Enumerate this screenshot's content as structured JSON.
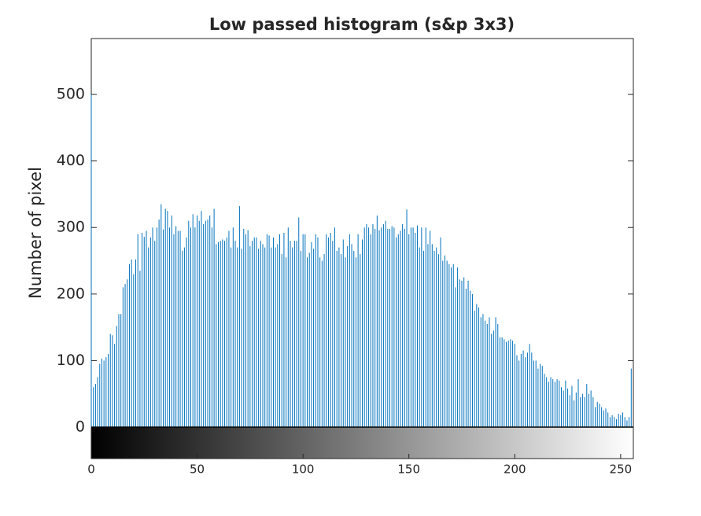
{
  "chart_data": {
    "type": "stem",
    "title": "Low passed histogram (s&p 3x3)",
    "y_label": "Number of pixel",
    "color": "#0072bd",
    "x": [
      0,
      1,
      2,
      3,
      4,
      5,
      6,
      7,
      8,
      9,
      10,
      11,
      12,
      13,
      14,
      15,
      16,
      17,
      18,
      19,
      20,
      21,
      22,
      23,
      24,
      25,
      26,
      27,
      28,
      29,
      30,
      31,
      32,
      33,
      34,
      35,
      36,
      37,
      38,
      39,
      40,
      41,
      42,
      43,
      44,
      45,
      46,
      47,
      48,
      49,
      50,
      51,
      52,
      53,
      54,
      55,
      56,
      57,
      58,
      59,
      60,
      61,
      62,
      63,
      64,
      65,
      66,
      67,
      68,
      69,
      70,
      71,
      72,
      73,
      74,
      75,
      76,
      77,
      78,
      79,
      80,
      81,
      82,
      83,
      84,
      85,
      86,
      87,
      88,
      89,
      90,
      91,
      92,
      93,
      94,
      95,
      96,
      97,
      98,
      99,
      100,
      101,
      102,
      103,
      104,
      105,
      106,
      107,
      108,
      109,
      110,
      111,
      112,
      113,
      114,
      115,
      116,
      117,
      118,
      119,
      120,
      121,
      122,
      123,
      124,
      125,
      126,
      127,
      128,
      129,
      130,
      131,
      132,
      133,
      134,
      135,
      136,
      137,
      138,
      139,
      140,
      141,
      142,
      143,
      144,
      145,
      146,
      147,
      148,
      149,
      150,
      151,
      152,
      153,
      154,
      155,
      156,
      157,
      158,
      159,
      160,
      161,
      162,
      163,
      164,
      165,
      166,
      167,
      168,
      169,
      170,
      171,
      172,
      173,
      174,
      175,
      176,
      177,
      178,
      179,
      180,
      181,
      182,
      183,
      184,
      185,
      186,
      187,
      188,
      189,
      190,
      191,
      192,
      193,
      194,
      195,
      196,
      197,
      198,
      199,
      200,
      201,
      202,
      203,
      204,
      205,
      206,
      207,
      208,
      209,
      210,
      211,
      212,
      213,
      214,
      215,
      216,
      217,
      218,
      219,
      220,
      221,
      222,
      223,
      224,
      225,
      226,
      227,
      228,
      229,
      230,
      231,
      232,
      233,
      234,
      235,
      236,
      237,
      238,
      239,
      240,
      241,
      242,
      243,
      244,
      245,
      246,
      247,
      248,
      249,
      250,
      251,
      252,
      253,
      254,
      255
    ],
    "values": [
      500,
      60,
      65,
      75,
      95,
      103,
      100,
      105,
      110,
      140,
      138,
      125,
      152,
      170,
      170,
      210,
      215,
      222,
      245,
      252,
      230,
      252,
      290,
      235,
      292,
      286,
      295,
      270,
      285,
      300,
      280,
      300,
      312,
      335,
      297,
      328,
      325,
      300,
      318,
      290,
      302,
      295,
      295,
      265,
      270,
      285,
      310,
      300,
      320,
      300,
      318,
      310,
      325,
      305,
      310,
      312,
      318,
      300,
      328,
      275,
      278,
      280,
      282,
      280,
      285,
      295,
      270,
      300,
      280,
      270,
      332,
      268,
      298,
      290,
      296,
      272,
      280,
      285,
      285,
      268,
      280,
      275,
      270,
      290,
      288,
      270,
      285,
      270,
      275,
      290,
      260,
      292,
      255,
      300,
      280,
      270,
      280,
      280,
      315,
      265,
      290,
      290,
      255,
      262,
      278,
      268,
      290,
      285,
      255,
      250,
      260,
      290,
      285,
      292,
      280,
      300,
      265,
      270,
      260,
      282,
      255,
      272,
      290,
      275,
      265,
      255,
      290,
      260,
      282,
      300,
      305,
      300,
      290,
      305,
      298,
      318,
      296,
      300,
      305,
      310,
      298,
      298,
      302,
      300,
      285,
      290,
      295,
      305,
      298,
      327,
      290,
      300,
      300,
      292,
      303,
      270,
      300,
      265,
      300,
      275,
      295,
      275,
      265,
      270,
      260,
      285,
      250,
      258,
      250,
      245,
      240,
      245,
      210,
      240,
      222,
      220,
      225,
      208,
      220,
      205,
      200,
      175,
      185,
      180,
      165,
      170,
      160,
      155,
      165,
      140,
      145,
      165,
      155,
      135,
      135,
      132,
      128,
      130,
      132,
      130,
      125,
      108,
      100,
      110,
      115,
      105,
      112,
      125,
      112,
      100,
      100,
      88,
      95,
      92,
      80,
      75,
      68,
      75,
      72,
      68,
      72,
      70,
      60,
      55,
      70,
      58,
      48,
      62,
      40,
      52,
      72,
      45,
      50,
      45,
      65,
      50,
      55,
      45,
      30,
      38,
      35,
      30,
      25,
      28,
      22,
      15,
      18,
      15,
      12,
      20,
      18,
      22,
      15,
      10,
      15,
      88
    ],
    "xlim": [
      0,
      256
    ],
    "ylim": [
      0,
      584
    ],
    "xticks": [
      0,
      50,
      100,
      150,
      200,
      250
    ],
    "yticks": [
      0,
      100,
      200,
      300,
      400,
      500
    ]
  }
}
